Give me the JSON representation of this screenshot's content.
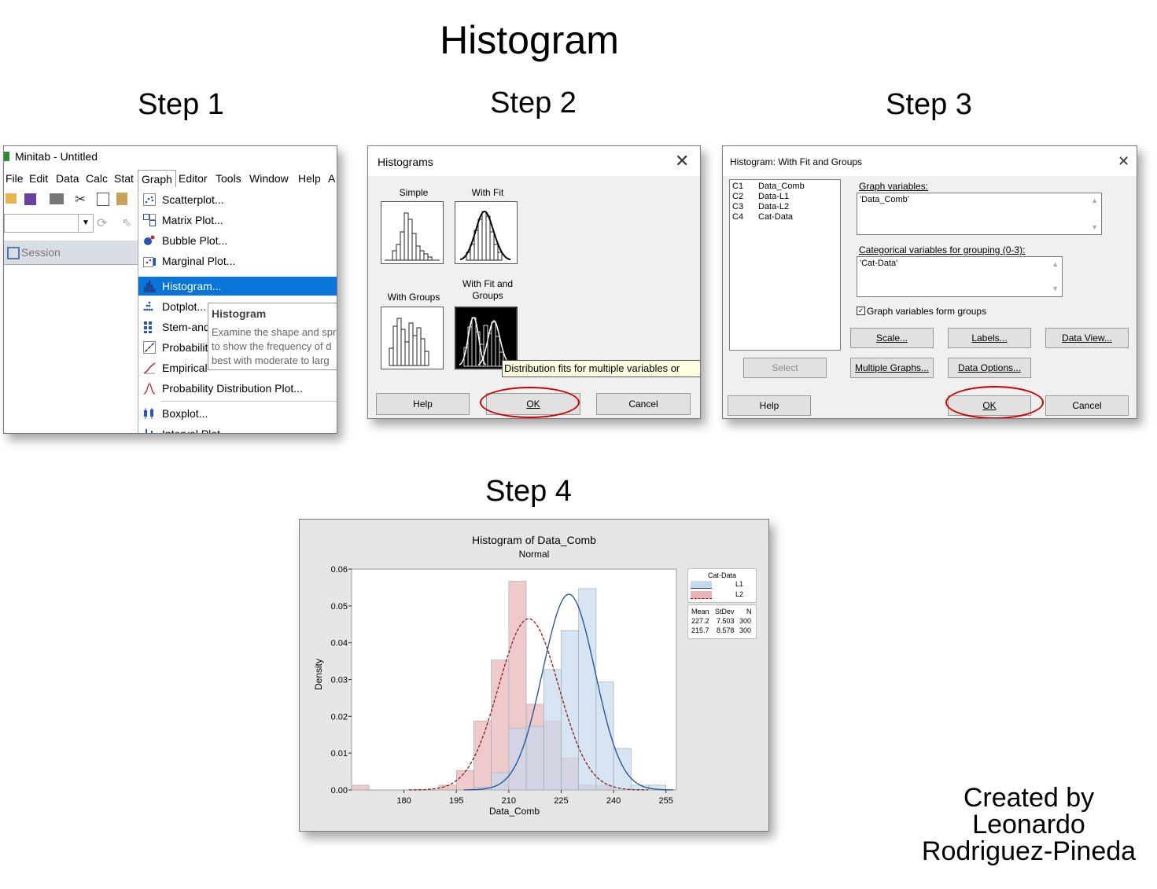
{
  "title": "Histogram",
  "steps": [
    "Step 1",
    "Step 2",
    "Step 3",
    "Step 4"
  ],
  "credit": {
    "line1": "Created by",
    "line2": "Leonardo",
    "line3": "Rodriguez-Pineda"
  },
  "step1": {
    "window_title": "Minitab - Untitled",
    "menubar": [
      "File",
      "Edit",
      "Data",
      "Calc",
      "Stat",
      "Graph",
      "Editor",
      "Tools",
      "Window",
      "Help",
      "A"
    ],
    "session_label": "Session",
    "menu_items": [
      {
        "label": "Scatterplot...",
        "icon": "scatterplot-icon"
      },
      {
        "label": "Matrix Plot...",
        "icon": "matrix-plot-icon"
      },
      {
        "label": "Bubble Plot...",
        "icon": "bubble-plot-icon"
      },
      {
        "label": "Marginal Plot...",
        "icon": "marginal-plot-icon"
      },
      {
        "label": "Histogram...",
        "icon": "histogram-icon",
        "selected": true
      },
      {
        "label": "Dotplot...",
        "icon": "dotplot-icon"
      },
      {
        "label": "Stem-and",
        "icon": "stem-and-leaf-icon"
      },
      {
        "label": "Probabilit",
        "icon": "probability-plot-icon"
      },
      {
        "label": "Empirical",
        "icon": "empirical-cdf-icon"
      },
      {
        "label": "Probability Distribution Plot...",
        "icon": "distribution-plot-icon"
      },
      {
        "label": "Boxplot...",
        "icon": "boxplot-icon"
      },
      {
        "label": "Interval Plot",
        "icon": "interval-plot-icon"
      }
    ],
    "tooltip": {
      "title": "Histogram",
      "line1": "Examine the shape and spr",
      "line2": "to show the frequency of d",
      "line3": "best with moderate to larg"
    }
  },
  "step2": {
    "dialog_title": "Histograms",
    "options": {
      "simple": "Simple",
      "with_fit": "With Fit",
      "with_groups": "With Groups",
      "with_fit_groups_1": "With Fit and",
      "with_fit_groups_2": "Groups"
    },
    "tooltip": "Distribution fits for multiple variables or",
    "buttons": {
      "help": "Help",
      "ok": "OK",
      "cancel": "Cancel"
    }
  },
  "step3": {
    "dialog_title": "Histogram: With Fit and Groups",
    "columns": [
      {
        "id": "C1",
        "name": "Data_Comb"
      },
      {
        "id": "C2",
        "name": "Data-L1"
      },
      {
        "id": "C3",
        "name": "Data-L2"
      },
      {
        "id": "C4",
        "name": "Cat-Data"
      }
    ],
    "graph_variables_label": "Graph variables:",
    "graph_variables_value": "'Data_Comb'",
    "categorical_label": "Categorical variables for grouping (0-3):",
    "categorical_value": "'Cat-Data'",
    "checkbox_label": "Graph variables form groups",
    "checkbox_checked": true,
    "buttons": {
      "scale": "Scale...",
      "labels": "Labels...",
      "data_view": "Data View...",
      "select": "Select",
      "multiple_graphs": "Multiple Graphs...",
      "data_options": "Data Options...",
      "help": "Help",
      "ok": "OK",
      "cancel": "Cancel"
    }
  },
  "step4": {
    "colors": {
      "l1_fill": "#c6d9ec",
      "l1_line": "#1f4e9a",
      "l2_fill": "#e8b4b8",
      "l2_line": "#8b1a1a"
    },
    "legend": {
      "title": "Cat-Data",
      "entries": [
        "L1",
        "L2"
      ],
      "headers": [
        "Mean",
        "StDev",
        "N"
      ],
      "rows": [
        [
          "227.2",
          "7.503",
          "300"
        ],
        [
          "215.7",
          "8.578",
          "300"
        ]
      ]
    }
  },
  "chart_data": {
    "type": "bar",
    "title": "Histogram of Data_Comb",
    "subtitle": "Normal",
    "xlabel": "Data_Comb",
    "ylabel": "Density",
    "xlim": [
      165,
      258
    ],
    "ylim": [
      0,
      0.06
    ],
    "xticks": [
      "180",
      "195",
      "210",
      "225",
      "240",
      "255"
    ],
    "yticks": [
      "0.00",
      "0.01",
      "0.02",
      "0.03",
      "0.04",
      "0.05",
      "0.06"
    ],
    "bin_width": 5,
    "series": [
      {
        "name": "L1",
        "bins": [
          [
            200,
            0.0007
          ],
          [
            205,
            0.0047
          ],
          [
            210,
            0.0167
          ],
          [
            215,
            0.0173
          ],
          [
            220,
            0.0327
          ],
          [
            225,
            0.0433
          ],
          [
            230,
            0.0547
          ],
          [
            235,
            0.0293
          ],
          [
            240,
            0.0113
          ],
          [
            245,
            0.0013
          ],
          [
            250,
            0.0013
          ]
        ],
        "fit": {
          "mean": 227.2,
          "stdev": 7.503
        }
      },
      {
        "name": "L2",
        "bins": [
          [
            165,
            0.0013
          ],
          [
            190,
            0.0013
          ],
          [
            195,
            0.0053
          ],
          [
            200,
            0.0187
          ],
          [
            205,
            0.0353
          ],
          [
            210,
            0.0567
          ],
          [
            215,
            0.0233
          ],
          [
            220,
            0.0187
          ],
          [
            225,
            0.0087
          ],
          [
            230,
            0.0013
          ],
          [
            235,
            0.0013
          ]
        ],
        "fit": {
          "mean": 215.7,
          "stdev": 8.578
        }
      }
    ],
    "legend_position": "right"
  }
}
